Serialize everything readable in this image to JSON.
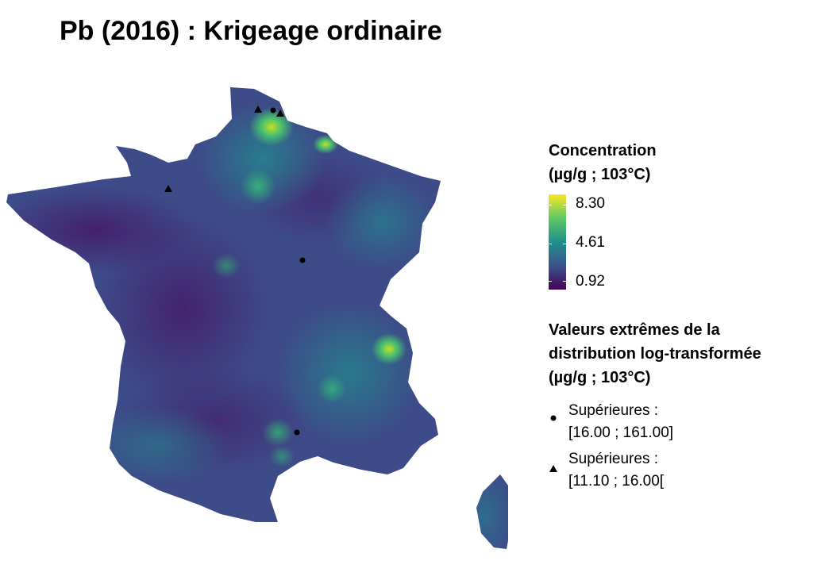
{
  "title": "Pb (2016) : Krigeage ordinaire",
  "legend": {
    "concentration": {
      "title_line1": "Concentration",
      "title_line2": "(µg/g ; 103°C)",
      "max": "8.30",
      "mid": "4.61",
      "min": "0.92",
      "colors": [
        "#440154",
        "#3b528b",
        "#21908c",
        "#5dc863",
        "#fde725"
      ]
    },
    "extremes": {
      "title_line1": "Valeurs extrêmes de la",
      "title_line2": "distribution log-transformée",
      "title_line3": "(µg/g ; 103°C)",
      "items": [
        {
          "symbol": "circle",
          "line1": "Supérieures :",
          "line2": "[16.00 ; 161.00]"
        },
        {
          "symbol": "triangle",
          "line1": "Supérieures :",
          "line2": "[11.10 ; 16.00["
        }
      ]
    }
  }
}
